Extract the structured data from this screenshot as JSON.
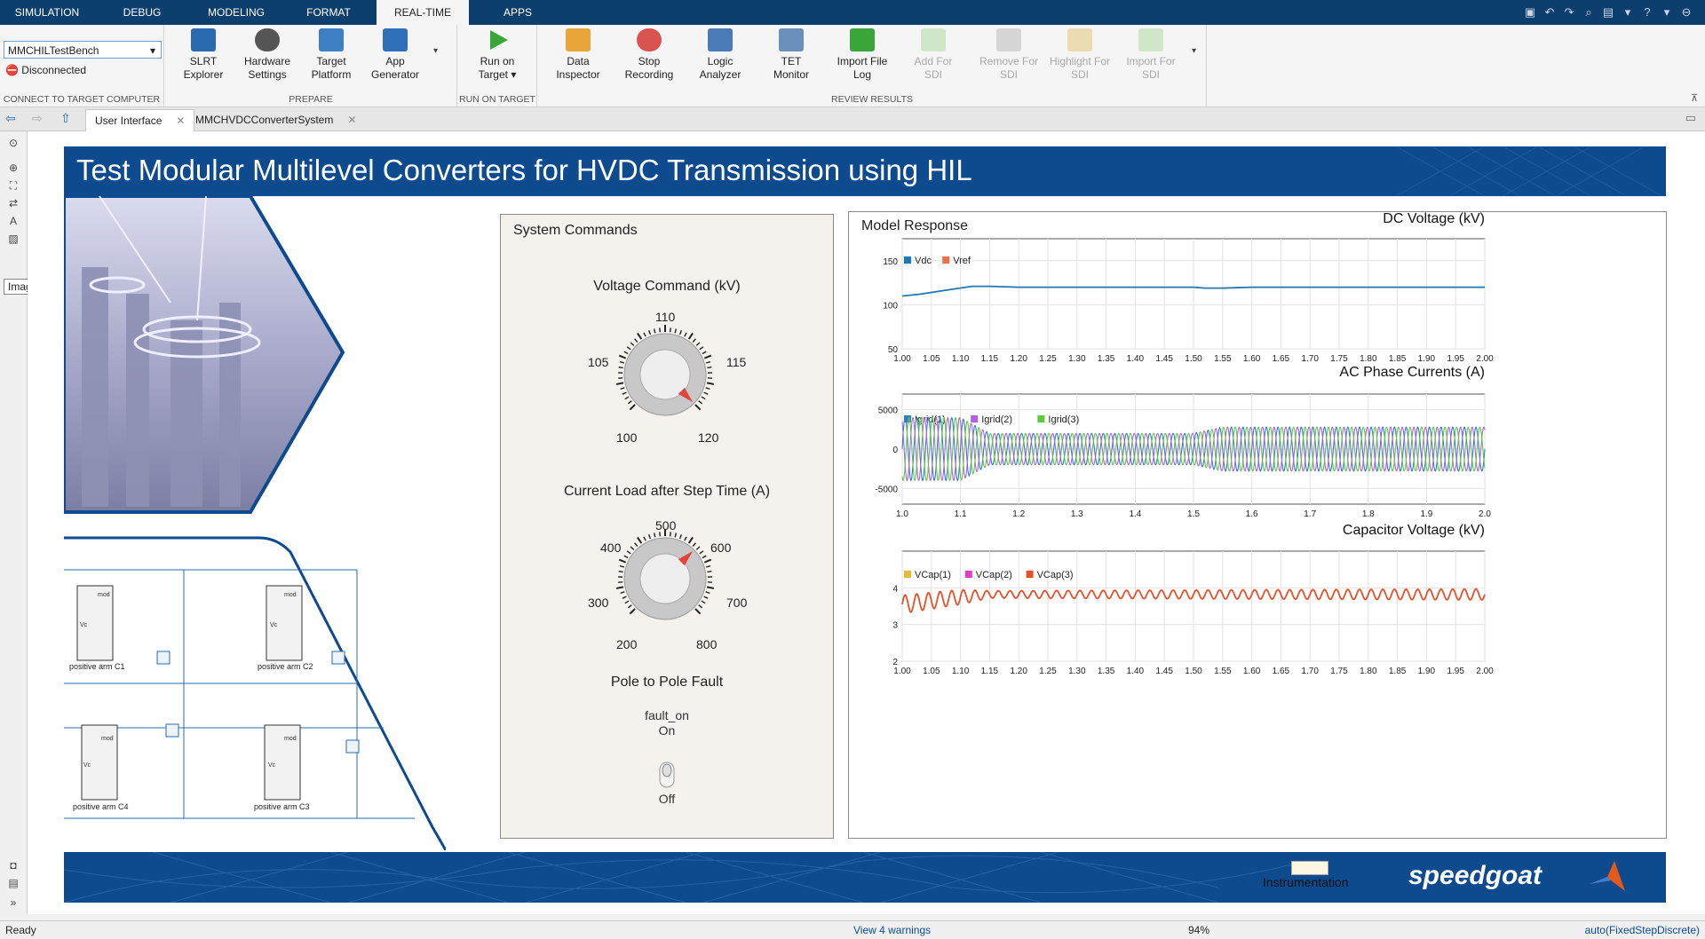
{
  "menubar": {
    "tabs": [
      "SIMULATION",
      "DEBUG",
      "MODELING",
      "FORMAT",
      "REAL-TIME",
      "APPS"
    ],
    "active_tab": "REAL-TIME"
  },
  "ribbon": {
    "connect": {
      "target_name": "MMCHILTestBench",
      "status": "Disconnected",
      "section_label": "CONNECT TO TARGET COMPUTER"
    },
    "prepare": {
      "section_label": "PREPARE",
      "buttons": [
        {
          "line1": "SLRT",
          "line2": "Explorer"
        },
        {
          "line1": "Hardware",
          "line2": "Settings"
        },
        {
          "line1": "Target",
          "line2": "Platform"
        },
        {
          "line1": "App",
          "line2": "Generator"
        }
      ]
    },
    "run": {
      "section_label": "RUN ON TARGET",
      "line1": "Run on",
      "line2": "Target"
    },
    "review": {
      "section_label": "REVIEW RESULTS",
      "buttons": [
        {
          "line1": "Data",
          "line2": "Inspector"
        },
        {
          "line1": "Stop",
          "line2": "Recording"
        },
        {
          "line1": "Logic",
          "line2": "Analyzer"
        },
        {
          "line1": "TET",
          "line2": "Monitor"
        },
        {
          "line1": "Import File",
          "line2": "Log"
        },
        {
          "line1": "Add For",
          "line2": "SDI"
        },
        {
          "line1": "Remove For",
          "line2": "SDI"
        },
        {
          "line1": "Highlight For",
          "line2": "SDI"
        },
        {
          "line1": "Import For",
          "line2": "SDI"
        }
      ]
    }
  },
  "tabs": [
    {
      "label": "User Interface"
    },
    {
      "label": "MMCHVDCConverterSystem"
    }
  ],
  "tooltip": "Image",
  "banner_title": "Test Modular Multilevel Converters for HVDC Transmission using HIL",
  "commands": {
    "title": "System Commands",
    "voltage_knob": {
      "label": "Voltage Command (kV)",
      "ticks": [
        "100",
        "105",
        "110",
        "115",
        "120"
      ],
      "value": 120
    },
    "current_knob": {
      "label": "Current Load after Step Time (A)",
      "ticks": [
        "200",
        "300",
        "400",
        "500",
        "600",
        "700",
        "800"
      ],
      "value": 600
    },
    "fault": {
      "label": "Pole to Pole Fault",
      "state_name": "fault_on",
      "on_label": "On",
      "off_label": "Off"
    }
  },
  "response": {
    "title": "Model Response"
  },
  "diagram": {
    "blocks": [
      "positive arm C1",
      "positive arm C2",
      "positive arm C4",
      "positive arm C3"
    ]
  },
  "footer": {
    "instrumentation": "Instrumentation",
    "brand": "speedgoat"
  },
  "status": {
    "ready": "Ready",
    "warnings": "View 4 warnings",
    "zoom": "94%",
    "solver": "auto(FixedStepDiscrete)"
  },
  "colors": {
    "banner": "#0e4a8e",
    "menubar": "#0d3f6e",
    "vdc": "#1f77b4",
    "vref": "#e8704a"
  },
  "chart_data": [
    {
      "type": "line",
      "title": "DC Voltage (kV)",
      "xlim": [
        1.0,
        2.0
      ],
      "ylim": [
        50,
        175
      ],
      "yticks": [
        50,
        100,
        150
      ],
      "xticks": [
        "1.00",
        "1.05",
        "1.10",
        "1.15",
        "1.20",
        "1.25",
        "1.30",
        "1.35",
        "1.40",
        "1.45",
        "1.50",
        "1.55",
        "1.60",
        "1.65",
        "1.70",
        "1.75",
        "1.80",
        "1.85",
        "1.90",
        "1.95",
        "2.00"
      ],
      "legend": [
        "Vdc",
        "Vref"
      ],
      "series": [
        {
          "name": "Vdc",
          "color": "#1f77b4",
          "x": [
            1.0,
            1.03,
            1.06,
            1.09,
            1.12,
            1.15,
            1.2,
            1.3,
            1.4,
            1.5,
            1.52,
            1.55,
            1.6,
            1.7,
            1.8,
            1.9,
            2.0
          ],
          "y": [
            110,
            112,
            115,
            118,
            121,
            121,
            120,
            120,
            120,
            120,
            119,
            119,
            120,
            120,
            120,
            120,
            120
          ]
        }
      ]
    },
    {
      "type": "line",
      "title": "AC Phase Currents (A)",
      "xlim": [
        1.0,
        2.0
      ],
      "ylim": [
        -7000,
        7000
      ],
      "yticks": [
        -5000,
        0,
        5000
      ],
      "xticks": [
        "1.0",
        "1.1",
        "1.2",
        "1.3",
        "1.4",
        "1.5",
        "1.6",
        "1.7",
        "1.8",
        "1.9",
        "2.0"
      ],
      "legend": [
        "Igrid(1)",
        "Igrid(2)",
        "Igrid(3)"
      ],
      "series": [
        {
          "name": "Igrid(1)",
          "color": "#2f7dc8",
          "amp": [
            [
              1.0,
              4000
            ],
            [
              1.1,
              4000
            ],
            [
              1.15,
              2000
            ],
            [
              1.5,
              2000
            ],
            [
              1.55,
              2800
            ],
            [
              2.0,
              2800
            ]
          ],
          "phase": 0
        },
        {
          "name": "Igrid(2)",
          "color": "#b060e6",
          "amp": [
            [
              1.0,
              4000
            ],
            [
              1.1,
              4000
            ],
            [
              1.15,
              2000
            ],
            [
              1.5,
              2000
            ],
            [
              1.55,
              2800
            ],
            [
              2.0,
              2800
            ]
          ],
          "phase": 2.094
        },
        {
          "name": "Igrid(3)",
          "color": "#5fc83c",
          "amp": [
            [
              1.0,
              4000
            ],
            [
              1.1,
              4000
            ],
            [
              1.15,
              2000
            ],
            [
              1.5,
              2000
            ],
            [
              1.55,
              2800
            ],
            [
              2.0,
              2800
            ]
          ],
          "phase": 4.189
        }
      ],
      "frequency_hz": 50
    },
    {
      "type": "line",
      "title": "Capacitor Voltage (kV)",
      "xlim": [
        1.0,
        2.0
      ],
      "ylim": [
        2,
        5
      ],
      "yticks": [
        2,
        3,
        4
      ],
      "xticks": [
        "1.00",
        "1.05",
        "1.10",
        "1.15",
        "1.20",
        "1.25",
        "1.30",
        "1.35",
        "1.40",
        "1.45",
        "1.50",
        "1.55",
        "1.60",
        "1.65",
        "1.70",
        "1.75",
        "1.80",
        "1.85",
        "1.90",
        "1.95",
        "2.00"
      ],
      "legend": [
        "VCap(1)",
        "VCap(2)",
        "VCap(3)"
      ],
      "legend_colors": [
        "#e6b93a",
        "#e040c8",
        "#e8502a"
      ],
      "series": [
        {
          "name": "VCap(3)",
          "color": "#e8502a",
          "mean": [
            [
              1.0,
              3.55
            ],
            [
              1.1,
              3.75
            ],
            [
              1.15,
              3.82
            ],
            [
              2.0,
              3.82
            ]
          ],
          "ripple": [
            [
              1.0,
              0.25
            ],
            [
              1.1,
              0.2
            ],
            [
              1.15,
              0.1
            ],
            [
              1.5,
              0.12
            ],
            [
              2.0,
              0.15
            ]
          ]
        }
      ]
    }
  ]
}
